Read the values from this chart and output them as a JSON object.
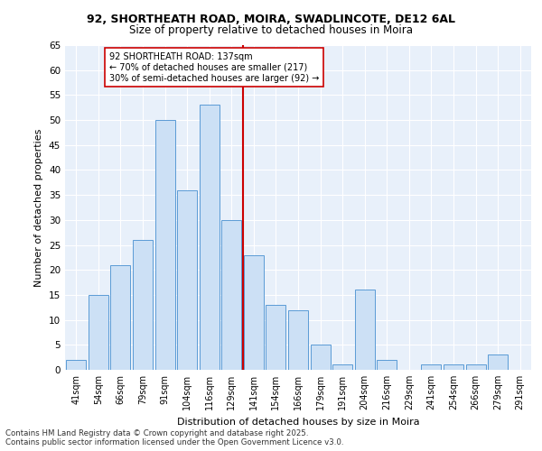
{
  "title_line1": "92, SHORTHEATH ROAD, MOIRA, SWADLINCOTE, DE12 6AL",
  "title_line2": "Size of property relative to detached houses in Moira",
  "xlabel": "Distribution of detached houses by size in Moira",
  "ylabel": "Number of detached properties",
  "categories": [
    "41sqm",
    "54sqm",
    "66sqm",
    "79sqm",
    "91sqm",
    "104sqm",
    "116sqm",
    "129sqm",
    "141sqm",
    "154sqm",
    "166sqm",
    "179sqm",
    "191sqm",
    "204sqm",
    "216sqm",
    "229sqm",
    "241sqm",
    "254sqm",
    "266sqm",
    "279sqm",
    "291sqm"
  ],
  "values": [
    2,
    15,
    21,
    26,
    50,
    36,
    53,
    30,
    23,
    13,
    12,
    5,
    1,
    16,
    2,
    0,
    1,
    1,
    1,
    3,
    0
  ],
  "bar_color": "#cce0f5",
  "bar_edge_color": "#5b9bd5",
  "highlight_label": "92 SHORTHEATH ROAD: 137sqm",
  "annotation_left": "← 70% of detached houses are smaller (217)",
  "annotation_right": "30% of semi-detached houses are larger (92) →",
  "vline_color": "#cc0000",
  "annotation_box_edge": "#cc0000",
  "background_color": "#e8f0fa",
  "grid_color": "#ffffff",
  "footnote": "Contains HM Land Registry data © Crown copyright and database right 2025.\nContains public sector information licensed under the Open Government Licence v3.0.",
  "ylim": [
    0,
    65
  ],
  "yticks": [
    0,
    5,
    10,
    15,
    20,
    25,
    30,
    35,
    40,
    45,
    50,
    55,
    60,
    65
  ]
}
